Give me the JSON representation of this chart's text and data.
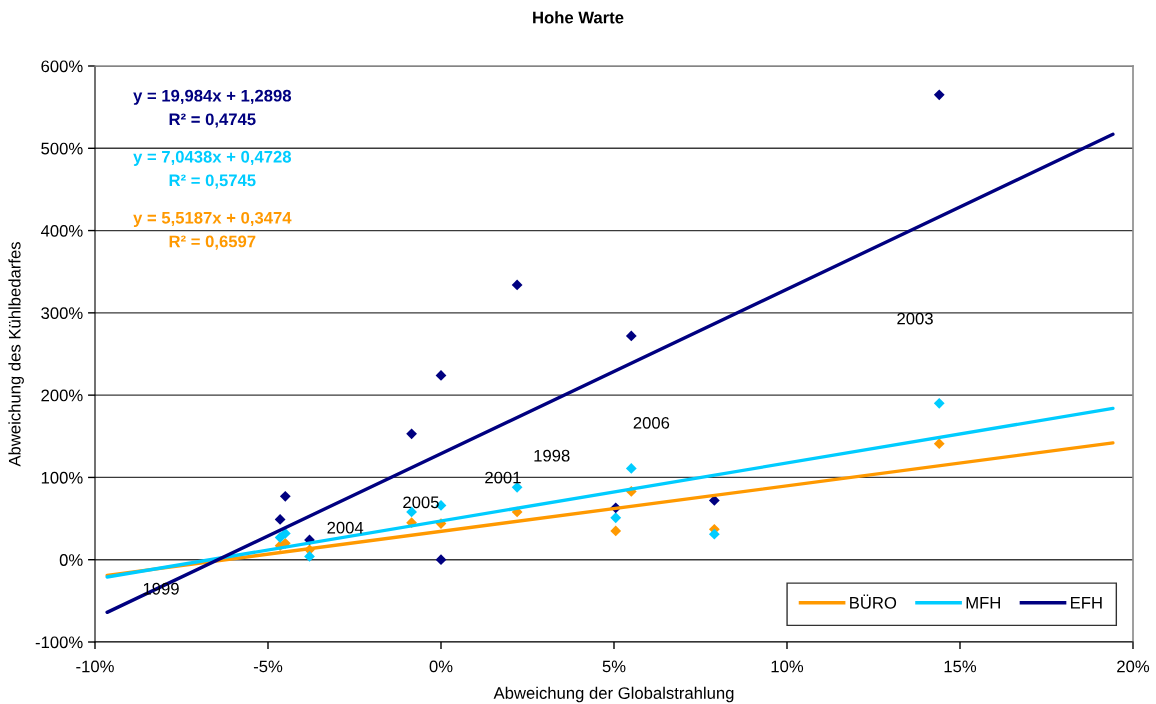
{
  "chart_data": {
    "type": "scatter",
    "title": "Hohe Warte",
    "xlabel": "Abweichung der Globalstrahlung",
    "ylabel": "Abweichung des Kühlbedarfes",
    "xlim": [
      -10,
      20
    ],
    "xticks": [
      {
        "value": -10,
        "label": "-10%"
      },
      {
        "value": -5,
        "label": "-5%"
      },
      {
        "value": 0,
        "label": "0%"
      },
      {
        "value": 5,
        "label": "5%"
      },
      {
        "value": 10,
        "label": "10%"
      },
      {
        "value": 15,
        "label": "15%"
      },
      {
        "value": 20,
        "label": "20%"
      }
    ],
    "ylim": [
      -100,
      600
    ],
    "yticks": [
      {
        "value": -100,
        "label": "-100%"
      },
      {
        "value": 0,
        "label": "0%"
      },
      {
        "value": 100,
        "label": "100%"
      },
      {
        "value": 200,
        "label": "200%"
      },
      {
        "value": 300,
        "label": "300%"
      },
      {
        "value": 400,
        "label": "400%"
      },
      {
        "value": 500,
        "label": "500%"
      },
      {
        "value": 600,
        "label": "600%"
      }
    ],
    "grid": "y",
    "legend": "bottom right",
    "marker": "diamond",
    "series": [
      {
        "color": "#ff9900",
        "x": [
          -4.65,
          -4.5,
          -3.8,
          -0.85,
          0,
          2.2,
          5.05,
          5.5,
          7.9,
          14.4
        ],
        "values": [
          17,
          20,
          12,
          45,
          44,
          58,
          35,
          83,
          37,
          141
        ]
      },
      {
        "color": "#00ccff",
        "x": [
          -4.65,
          -4.5,
          -3.8,
          -0.85,
          0,
          2.2,
          5.05,
          5.5,
          7.9,
          14.4
        ],
        "values": [
          27,
          32,
          4,
          58,
          66,
          88,
          51,
          111,
          31,
          190
        ]
      },
      {
        "color": "#000080",
        "x": [
          -4.65,
          -4.5,
          -3.8,
          -0.85,
          0,
          0,
          2.2,
          5.05,
          5.5,
          7.9,
          14.4
        ],
        "values": [
          49,
          77,
          24,
          153,
          224,
          0,
          334,
          63,
          272,
          72,
          565
        ]
      },
      {
        "type": "line",
        "name": "BÜRO",
        "color": "#ff9900",
        "marker": "none",
        "x": [
          -9.65,
          19.42
        ],
        "values": [
          -19,
          142
        ]
      },
      {
        "type": "line",
        "name": "MFH",
        "color": "#00ccff",
        "marker": "none",
        "x": [
          -9.65,
          19.42
        ],
        "values": [
          -21,
          184
        ]
      },
      {
        "type": "line",
        "name": "EFH",
        "color": "#000080",
        "marker": "none",
        "x": [
          -9.65,
          19.42
        ],
        "values": [
          -64,
          517
        ]
      }
    ],
    "annotations": [
      "y = 19,984x + 1,2898",
      "R² = 0,4745",
      "y = 7,0438x + 0,4728",
      "R² = 0,5745",
      "y = 5,5187x + 0,3474",
      "R² = 0,6597",
      "2003",
      "2006",
      "1998",
      "2001",
      "2005",
      "2004",
      "1999"
    ]
  }
}
